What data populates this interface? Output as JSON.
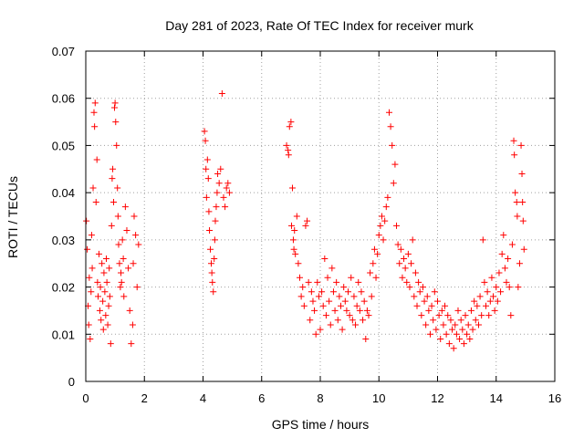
{
  "chart_data": {
    "type": "scatter",
    "title": "Day 281 of 2023, Rate Of TEC Index for receiver murk",
    "xlabel": "GPS time / hours",
    "ylabel": "ROTI / TECUs",
    "xlim": [
      0,
      16
    ],
    "ylim": [
      0,
      0.07
    ],
    "xticks": [
      0,
      2,
      4,
      6,
      8,
      10,
      12,
      14,
      16
    ],
    "xtick_labels": [
      "0",
      "2",
      "4",
      "6",
      "8",
      "10",
      "12",
      "14",
      "16"
    ],
    "yticks": [
      0,
      0.01,
      0.02,
      0.03,
      0.04,
      0.05,
      0.06,
      0.07
    ],
    "ytick_labels": [
      "0",
      "0.01",
      "0.02",
      "0.03",
      "0.04",
      "0.05",
      "0.06",
      "0.07"
    ],
    "grid": true,
    "legend": "none",
    "marker": "+",
    "color": "#ff0000",
    "series": [
      {
        "name": "ROTI",
        "points": [
          [
            0.02,
            0.034
          ],
          [
            0.05,
            0.028
          ],
          [
            0.08,
            0.016
          ],
          [
            0.1,
            0.012
          ],
          [
            0.12,
            0.022
          ],
          [
            0.15,
            0.009
          ],
          [
            0.18,
            0.019
          ],
          [
            0.2,
            0.031
          ],
          [
            0.22,
            0.024
          ],
          [
            0.25,
            0.041
          ],
          [
            0.28,
            0.057
          ],
          [
            0.3,
            0.054
          ],
          [
            0.32,
            0.059
          ],
          [
            0.35,
            0.038
          ],
          [
            0.38,
            0.047
          ],
          [
            0.4,
            0.021
          ],
          [
            0.42,
            0.018
          ],
          [
            0.45,
            0.027
          ],
          [
            0.48,
            0.015
          ],
          [
            0.5,
            0.02
          ],
          [
            0.52,
            0.013
          ],
          [
            0.55,
            0.025
          ],
          [
            0.58,
            0.017
          ],
          [
            0.6,
            0.011
          ],
          [
            0.62,
            0.023
          ],
          [
            0.65,
            0.019
          ],
          [
            0.68,
            0.014
          ],
          [
            0.7,
            0.026
          ],
          [
            0.72,
            0.021
          ],
          [
            0.75,
            0.012
          ],
          [
            0.78,
            0.016
          ],
          [
            0.8,
            0.024
          ],
          [
            0.82,
            0.018
          ],
          [
            0.85,
            0.008
          ],
          [
            0.88,
            0.033
          ],
          [
            0.9,
            0.043
          ],
          [
            0.92,
            0.045
          ],
          [
            0.95,
            0.038
          ],
          [
            0.98,
            0.058
          ],
          [
            1.0,
            0.059
          ],
          [
            1.02,
            0.055
          ],
          [
            1.05,
            0.05
          ],
          [
            1.08,
            0.041
          ],
          [
            1.1,
            0.035
          ],
          [
            1.12,
            0.029
          ],
          [
            1.15,
            0.025
          ],
          [
            1.18,
            0.02
          ],
          [
            1.2,
            0.023
          ],
          [
            1.22,
            0.021
          ],
          [
            1.25,
            0.03
          ],
          [
            1.28,
            0.026
          ],
          [
            1.3,
            0.018
          ],
          [
            1.35,
            0.037
          ],
          [
            1.4,
            0.032
          ],
          [
            1.45,
            0.024
          ],
          [
            1.5,
            0.015
          ],
          [
            1.55,
            0.008
          ],
          [
            1.6,
            0.012
          ],
          [
            1.62,
            0.025
          ],
          [
            1.65,
            0.035
          ],
          [
            1.7,
            0.031
          ],
          [
            1.75,
            0.02
          ],
          [
            1.8,
            0.029
          ],
          [
            4.05,
            0.053
          ],
          [
            4.08,
            0.051
          ],
          [
            4.1,
            0.045
          ],
          [
            4.12,
            0.039
          ],
          [
            4.15,
            0.047
          ],
          [
            4.18,
            0.043
          ],
          [
            4.2,
            0.036
          ],
          [
            4.22,
            0.032
          ],
          [
            4.25,
            0.028
          ],
          [
            4.28,
            0.025
          ],
          [
            4.3,
            0.023
          ],
          [
            4.32,
            0.021
          ],
          [
            4.35,
            0.019
          ],
          [
            4.38,
            0.026
          ],
          [
            4.4,
            0.03
          ],
          [
            4.42,
            0.034
          ],
          [
            4.45,
            0.037
          ],
          [
            4.48,
            0.04
          ],
          [
            4.5,
            0.044
          ],
          [
            4.55,
            0.042
          ],
          [
            4.6,
            0.045
          ],
          [
            4.65,
            0.061
          ],
          [
            4.7,
            0.039
          ],
          [
            4.75,
            0.037
          ],
          [
            4.8,
            0.041
          ],
          [
            4.85,
            0.042
          ],
          [
            4.9,
            0.04
          ],
          [
            6.85,
            0.05
          ],
          [
            6.9,
            0.049
          ],
          [
            6.92,
            0.048
          ],
          [
            6.95,
            0.054
          ],
          [
            7.0,
            0.055
          ],
          [
            7.02,
            0.033
          ],
          [
            7.05,
            0.041
          ],
          [
            7.08,
            0.03
          ],
          [
            7.1,
            0.028
          ],
          [
            7.12,
            0.032
          ],
          [
            7.15,
            0.027
          ],
          [
            7.2,
            0.035
          ],
          [
            7.25,
            0.025
          ],
          [
            7.3,
            0.022
          ],
          [
            7.35,
            0.018
          ],
          [
            7.4,
            0.02
          ],
          [
            7.45,
            0.016
          ],
          [
            7.5,
            0.033
          ],
          [
            7.55,
            0.034
          ],
          [
            7.6,
            0.021
          ],
          [
            7.65,
            0.013
          ],
          [
            7.7,
            0.019
          ],
          [
            7.75,
            0.017
          ],
          [
            7.8,
            0.015
          ],
          [
            7.85,
            0.01
          ],
          [
            7.9,
            0.021
          ],
          [
            7.95,
            0.018
          ],
          [
            8.0,
            0.011
          ],
          [
            8.05,
            0.019
          ],
          [
            8.1,
            0.016
          ],
          [
            8.15,
            0.026
          ],
          [
            8.2,
            0.014
          ],
          [
            8.25,
            0.022
          ],
          [
            8.3,
            0.017
          ],
          [
            8.35,
            0.012
          ],
          [
            8.4,
            0.024
          ],
          [
            8.45,
            0.019
          ],
          [
            8.5,
            0.015
          ],
          [
            8.55,
            0.021
          ],
          [
            8.6,
            0.013
          ],
          [
            8.65,
            0.018
          ],
          [
            8.7,
            0.016
          ],
          [
            8.75,
            0.011
          ],
          [
            8.8,
            0.02
          ],
          [
            8.85,
            0.017
          ],
          [
            8.9,
            0.015
          ],
          [
            8.95,
            0.019
          ],
          [
            9.0,
            0.014
          ],
          [
            9.05,
            0.022
          ],
          [
            9.1,
            0.013
          ],
          [
            9.15,
            0.018
          ],
          [
            9.2,
            0.012
          ],
          [
            9.25,
            0.016
          ],
          [
            9.3,
            0.021
          ],
          [
            9.35,
            0.015
          ],
          [
            9.4,
            0.019
          ],
          [
            9.45,
            0.013
          ],
          [
            9.5,
            0.017
          ],
          [
            9.55,
            0.009
          ],
          [
            9.6,
            0.015
          ],
          [
            9.65,
            0.014
          ],
          [
            9.7,
            0.023
          ],
          [
            9.75,
            0.018
          ],
          [
            9.8,
            0.025
          ],
          [
            9.85,
            0.028
          ],
          [
            9.9,
            0.022
          ],
          [
            9.95,
            0.027
          ],
          [
            10.0,
            0.031
          ],
          [
            10.05,
            0.033
          ],
          [
            10.1,
            0.035
          ],
          [
            10.15,
            0.03
          ],
          [
            10.2,
            0.034
          ],
          [
            10.25,
            0.037
          ],
          [
            10.3,
            0.039
          ],
          [
            10.35,
            0.057
          ],
          [
            10.4,
            0.054
          ],
          [
            10.45,
            0.05
          ],
          [
            10.5,
            0.042
          ],
          [
            10.55,
            0.046
          ],
          [
            10.6,
            0.033
          ],
          [
            10.65,
            0.029
          ],
          [
            10.7,
            0.025
          ],
          [
            10.75,
            0.028
          ],
          [
            10.8,
            0.022
          ],
          [
            10.85,
            0.026
          ],
          [
            10.9,
            0.024
          ],
          [
            10.95,
            0.021
          ],
          [
            11.0,
            0.027
          ],
          [
            11.05,
            0.02
          ],
          [
            11.1,
            0.025
          ],
          [
            11.15,
            0.03
          ],
          [
            11.2,
            0.018
          ],
          [
            11.25,
            0.023
          ],
          [
            11.3,
            0.016
          ],
          [
            11.35,
            0.021
          ],
          [
            11.4,
            0.019
          ],
          [
            11.45,
            0.014
          ],
          [
            11.5,
            0.02
          ],
          [
            11.55,
            0.017
          ],
          [
            11.6,
            0.012
          ],
          [
            11.65,
            0.018
          ],
          [
            11.7,
            0.015
          ],
          [
            11.75,
            0.01
          ],
          [
            11.8,
            0.016
          ],
          [
            11.85,
            0.013
          ],
          [
            11.9,
            0.019
          ],
          [
            11.95,
            0.011
          ],
          [
            12.0,
            0.017
          ],
          [
            12.05,
            0.014
          ],
          [
            12.1,
            0.009
          ],
          [
            12.15,
            0.015
          ],
          [
            12.2,
            0.012
          ],
          [
            12.25,
            0.016
          ],
          [
            12.3,
            0.01
          ],
          [
            12.35,
            0.014
          ],
          [
            12.4,
            0.008
          ],
          [
            12.45,
            0.013
          ],
          [
            12.5,
            0.011
          ],
          [
            12.55,
            0.007
          ],
          [
            12.6,
            0.012
          ],
          [
            12.65,
            0.01
          ],
          [
            12.7,
            0.015
          ],
          [
            12.75,
            0.009
          ],
          [
            12.8,
            0.013
          ],
          [
            12.85,
            0.011
          ],
          [
            12.9,
            0.008
          ],
          [
            12.95,
            0.014
          ],
          [
            13.0,
            0.01
          ],
          [
            13.05,
            0.012
          ],
          [
            13.1,
            0.009
          ],
          [
            13.15,
            0.015
          ],
          [
            13.2,
            0.011
          ],
          [
            13.25,
            0.017
          ],
          [
            13.3,
            0.013
          ],
          [
            13.35,
            0.016
          ],
          [
            13.4,
            0.012
          ],
          [
            13.45,
            0.018
          ],
          [
            13.5,
            0.014
          ],
          [
            13.55,
            0.03
          ],
          [
            13.6,
            0.021
          ],
          [
            13.65,
            0.016
          ],
          [
            13.7,
            0.019
          ],
          [
            13.75,
            0.014
          ],
          [
            13.8,
            0.017
          ],
          [
            13.85,
            0.022
          ],
          [
            13.9,
            0.018
          ],
          [
            13.95,
            0.015
          ],
          [
            14.0,
            0.02
          ],
          [
            14.05,
            0.017
          ],
          [
            14.1,
            0.023
          ],
          [
            14.15,
            0.019
          ],
          [
            14.2,
            0.027
          ],
          [
            14.25,
            0.031
          ],
          [
            14.3,
            0.024
          ],
          [
            14.35,
            0.021
          ],
          [
            14.4,
            0.026
          ],
          [
            14.45,
            0.02
          ],
          [
            14.5,
            0.014
          ],
          [
            14.55,
            0.029
          ],
          [
            14.6,
            0.051
          ],
          [
            14.62,
            0.048
          ],
          [
            14.65,
            0.04
          ],
          [
            14.7,
            0.038
          ],
          [
            14.72,
            0.035
          ],
          [
            14.75,
            0.02
          ],
          [
            14.8,
            0.025
          ],
          [
            14.85,
            0.05
          ],
          [
            14.88,
            0.044
          ],
          [
            14.9,
            0.038
          ],
          [
            14.92,
            0.034
          ],
          [
            14.95,
            0.028
          ]
        ]
      }
    ]
  }
}
